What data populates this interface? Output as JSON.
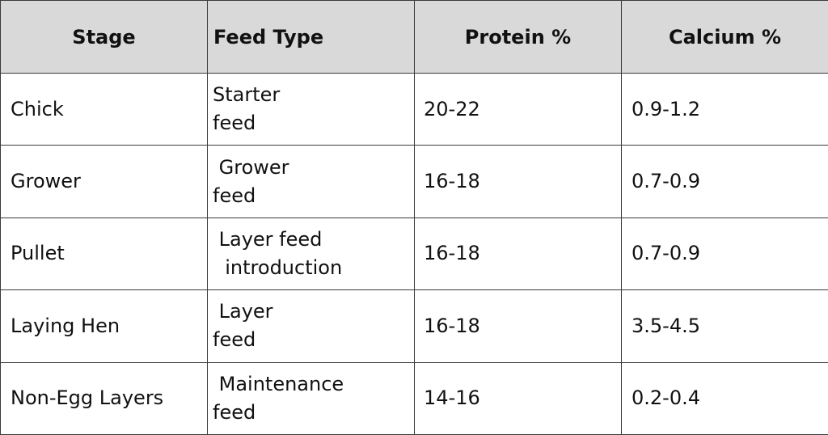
{
  "table": {
    "headers": {
      "stage": "Stage",
      "feed_type": "Feed Type",
      "protein": "Protein %",
      "calcium": "Calcium %"
    },
    "rows": [
      {
        "stage": "Chick",
        "feed_type": "Starter\nfeed",
        "protein": "20-22",
        "calcium": "0.9-1.2"
      },
      {
        "stage": "Grower",
        "feed_type": " Grower\nfeed",
        "protein": "16-18",
        "calcium": "0.7-0.9"
      },
      {
        "stage": "Pullet",
        "feed_type": " Layer feed\n  introduction",
        "protein": "16-18",
        "calcium": "0.7-0.9"
      },
      {
        "stage": "Laying Hen",
        "feed_type": " Layer\nfeed",
        "protein": "16-18",
        "calcium": "3.5-4.5"
      },
      {
        "stage": "Non-Egg Layers",
        "feed_type": " Maintenance\nfeed",
        "protein": "14-16",
        "calcium": "0.2-0.4"
      }
    ]
  },
  "colors": {
    "header_background": "#d9d9d9",
    "border": "#3a3a3a",
    "text": "#111111"
  }
}
